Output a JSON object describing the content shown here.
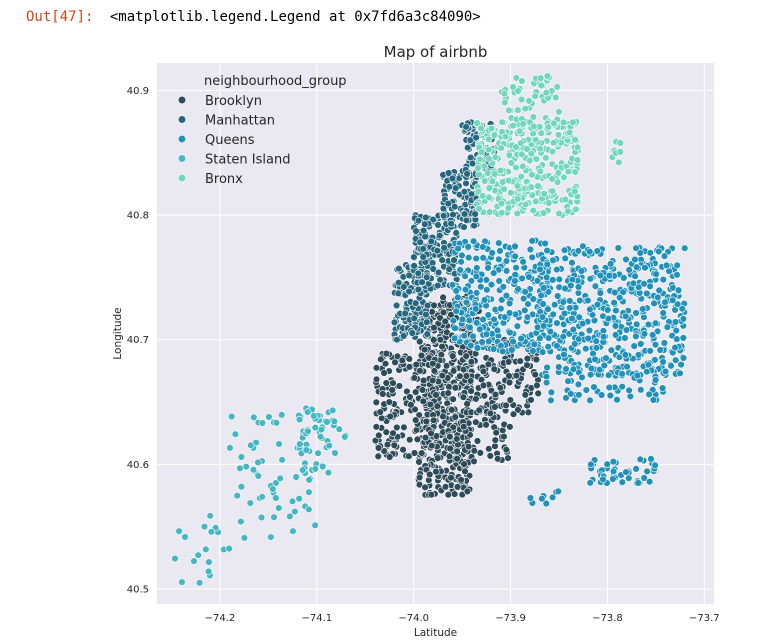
{
  "cell_output": {
    "prompt": "Out[47]:",
    "text": "<matplotlib.legend.Legend at 0x7fd6a3c84090>"
  },
  "chart_data": {
    "type": "scatter",
    "title": "Map of airbnb",
    "xlabel": "Latitude",
    "ylabel": "Longitude",
    "xlim": [
      -74.265,
      -73.69
    ],
    "ylim": [
      40.488,
      40.922
    ],
    "x_ticks": [
      -74.2,
      -74.1,
      -74.0,
      -73.9,
      -73.8,
      -73.7
    ],
    "x_tick_labels": [
      "−74.2",
      "−74.1",
      "−74.0",
      "−73.9",
      "−73.8",
      "−73.7"
    ],
    "y_ticks": [
      40.5,
      40.6,
      40.7,
      40.8,
      40.9
    ],
    "y_tick_labels": [
      "40.5",
      "40.6",
      "40.7",
      "40.8",
      "40.9"
    ],
    "grid": true,
    "background_color": "#eae9f2",
    "legend": {
      "title": "neighbourhood_group",
      "placement": "top-left"
    },
    "series": [
      {
        "name": "Brooklyn",
        "color": "#2d4b58",
        "regions": [
          {
            "x": [
              -73.995,
              -73.94
            ],
            "y": [
              40.575,
              40.73
            ],
            "n": 420
          },
          {
            "x": [
              -74.04,
              -73.975
            ],
            "y": [
              40.605,
              40.69
            ],
            "n": 170
          },
          {
            "x": [
              -73.95,
              -73.87
            ],
            "y": [
              40.64,
              40.7
            ],
            "n": 150
          },
          {
            "x": [
              -73.965,
              -73.9
            ],
            "y": [
              40.6,
              40.645
            ],
            "n": 70
          },
          {
            "x": [
              -73.97,
              -73.93
            ],
            "y": [
              40.715,
              40.735
            ],
            "n": 30
          }
        ]
      },
      {
        "name": "Manhattan",
        "color": "#25677f",
        "regions": [
          {
            "x": [
              -74.02,
              -73.985
            ],
            "y": [
              40.7,
              40.76
            ],
            "n": 140
          },
          {
            "x": [
              -74.0,
              -73.955
            ],
            "y": [
              40.74,
              40.8
            ],
            "n": 170
          },
          {
            "x": [
              -73.97,
              -73.935
            ],
            "y": [
              40.79,
              40.835
            ],
            "n": 110
          },
          {
            "x": [
              -73.95,
              -73.915
            ],
            "y": [
              40.83,
              40.875
            ],
            "n": 60
          }
        ]
      },
      {
        "name": "Queens",
        "color": "#2191b9",
        "regions": [
          {
            "x": [
              -73.96,
              -73.86
            ],
            "y": [
              40.69,
              40.78
            ],
            "n": 280
          },
          {
            "x": [
              -73.87,
              -73.72
            ],
            "y": [
              40.67,
              40.775
            ],
            "n": 480
          },
          {
            "x": [
              -73.87,
              -73.74
            ],
            "y": [
              40.65,
              40.68
            ],
            "n": 60
          },
          {
            "x": [
              -73.82,
              -73.75
            ],
            "y": [
              40.585,
              40.605
            ],
            "n": 45
          },
          {
            "x": [
              -73.88,
              -73.85
            ],
            "y": [
              40.565,
              40.58
            ],
            "n": 8
          }
        ]
      },
      {
        "name": "Staten Island",
        "color": "#45b6c4",
        "regions": [
          {
            "x": [
              -74.12,
              -74.07
            ],
            "y": [
              40.59,
              40.645
            ],
            "n": 55
          },
          {
            "x": [
              -74.19,
              -74.1
            ],
            "y": [
              40.54,
              40.64
            ],
            "n": 60
          },
          {
            "x": [
              -74.25,
              -74.19
            ],
            "y": [
              40.5,
              40.56
            ],
            "n": 18
          }
        ]
      },
      {
        "name": "Bronx",
        "color": "#72d6bd",
        "regions": [
          {
            "x": [
              -73.935,
              -73.83
            ],
            "y": [
              40.8,
              40.875
            ],
            "n": 340
          },
          {
            "x": [
              -73.91,
              -73.85
            ],
            "y": [
              40.87,
              40.912
            ],
            "n": 60
          },
          {
            "x": [
              -73.795,
              -73.785
            ],
            "y": [
              40.84,
              40.86
            ],
            "n": 7
          }
        ]
      }
    ]
  }
}
